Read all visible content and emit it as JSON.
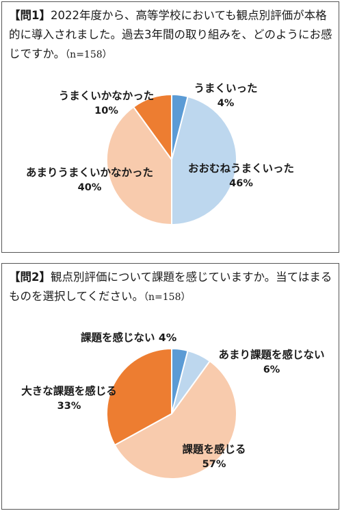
{
  "q1": {
    "tag": "【問1】",
    "text": "2022年度から、高等学校においても観点別評価が本格的に導入されました。過去3年間の取り組みを、どのようにお感じですか。",
    "n": "（n=158）"
  },
  "q2": {
    "tag": "【問2】",
    "text": "観点別評価について課題を感じていますか。当てはまるものを選択してください。",
    "n": "（n=158）"
  },
  "chart_data": [
    {
      "type": "pie",
      "categories": [
        "うまくいった",
        "おおむねうまくいった",
        "あまりうまくいかなかった",
        "うまくいかなかった"
      ],
      "values": [
        4,
        46,
        40,
        10
      ],
      "value_labels": [
        "4%",
        "46%",
        "40%",
        "10%"
      ],
      "colors": [
        "#5b9bd5",
        "#bdd7ee",
        "#f8cbad",
        "#ed7d31"
      ]
    },
    {
      "type": "pie",
      "categories": [
        "課題を感じない",
        "あまり課題を感じない",
        "課題を感じる",
        "大きな課題を感じる"
      ],
      "values": [
        4,
        6,
        57,
        33
      ],
      "value_labels": [
        "4%",
        "6%",
        "57%",
        "33%"
      ],
      "colors": [
        "#5b9bd5",
        "#bdd7ee",
        "#f8cbad",
        "#ed7d31"
      ]
    }
  ]
}
